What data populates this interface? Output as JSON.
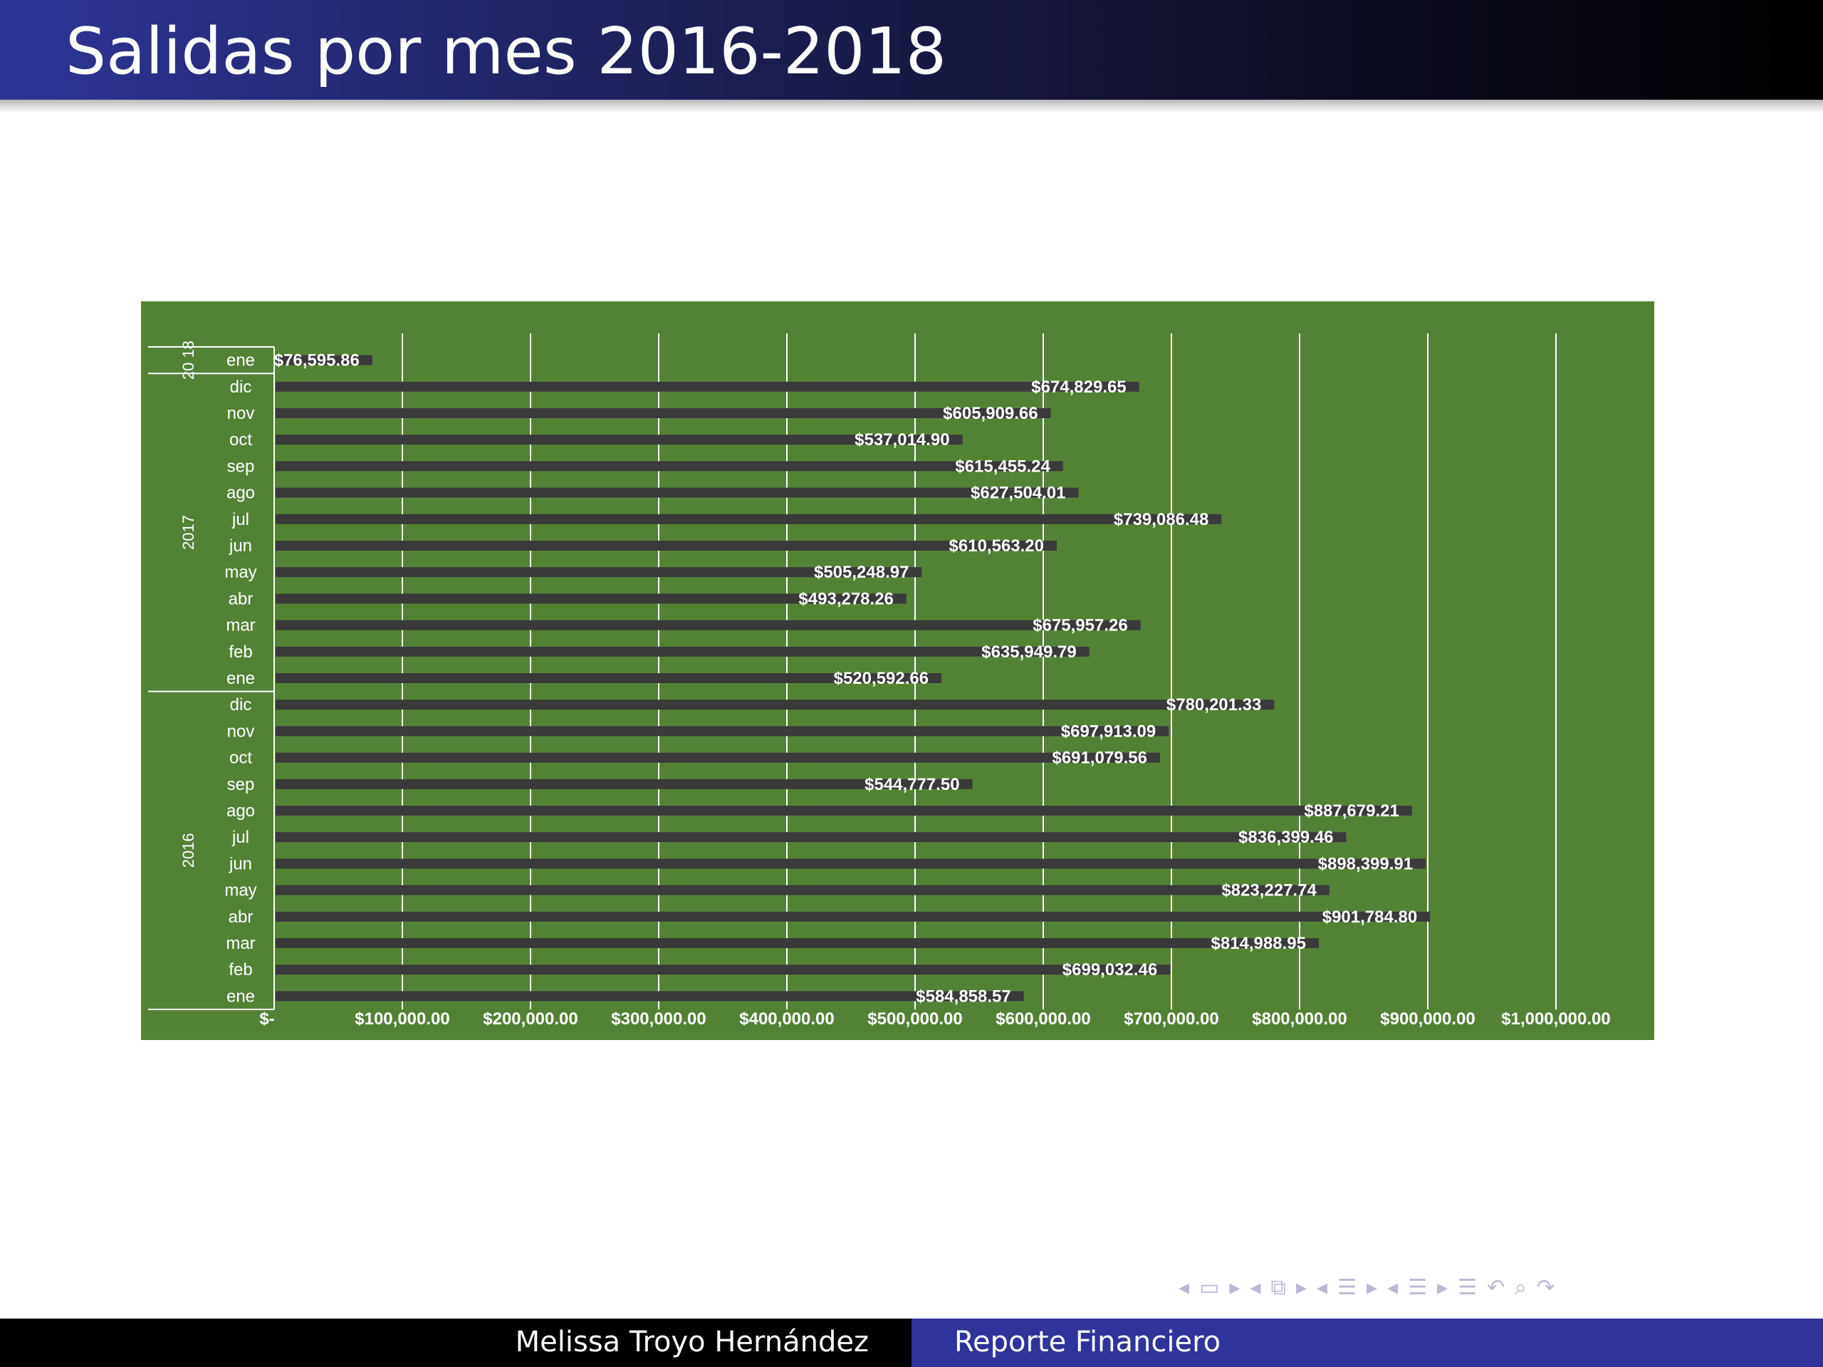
{
  "slide": {
    "title": "Salidas por mes 2016-2018"
  },
  "footer": {
    "author": "Melissa Troyo Hernández",
    "title": "Reporte Financiero"
  },
  "nav_icons": [
    "arrow-left-icon",
    "frame-icon",
    "arrow-right-icon",
    "arrow-left-icon",
    "frames-icon",
    "arrow-right-icon",
    "arrow-left-icon",
    "section-icon",
    "arrow-right-icon",
    "arrow-left-icon",
    "subsection-icon",
    "arrow-right-icon",
    "list-icon",
    "undo-icon",
    "search-icon",
    "redo-icon"
  ],
  "colors": {
    "header_left": "#2e3496",
    "header_right": "#000000",
    "chart_bg": "#548235",
    "bar": "#3a3a3a",
    "grid": "#ffffff",
    "footer_right": "#30339a"
  },
  "chart_data": {
    "type": "bar",
    "orientation": "horizontal",
    "title": "",
    "xlabel": "",
    "ylabel": "",
    "xlim": [
      0,
      1000000
    ],
    "grid": true,
    "x_ticks": [
      "$-",
      "$100,000.00",
      "$200,000.00",
      "$300,000.00",
      "$400,000.00",
      "$500,000.00",
      "$600,000.00",
      "$700,000.00",
      "$800,000.00",
      "$900,000.00",
      "$1,000,000.00"
    ],
    "groups": [
      {
        "year_label": "20 18",
        "months": [
          "ene"
        ]
      },
      {
        "year_label": "2017",
        "months": [
          "dic",
          "nov",
          "oct",
          "sep",
          "ago",
          "jul",
          "jun",
          "may",
          "abr",
          "mar",
          "feb",
          "ene"
        ]
      },
      {
        "year_label": "2016",
        "months": [
          "dic",
          "nov",
          "oct",
          "sep",
          "ago",
          "jul",
          "jun",
          "may",
          "abr",
          "mar",
          "feb",
          "ene"
        ]
      }
    ],
    "values": [
      76595.86,
      674829.65,
      605909.66,
      537014.9,
      615455.24,
      627504.01,
      739086.48,
      610563.2,
      505248.97,
      493278.26,
      675957.26,
      635949.79,
      520592.66,
      780201.33,
      697913.09,
      691079.56,
      544777.5,
      887679.21,
      836399.46,
      898399.91,
      823227.74,
      901784.8,
      814988.95,
      699032.46,
      584858.57
    ],
    "data_labels": [
      "$76,595.86",
      "$674,829.65",
      "$605,909.66",
      "$537,014.90",
      "$615,455.24",
      "$627,504.01",
      "$739,086.48",
      "$610,563.20",
      "$505,248.97",
      "$493,278.26",
      "$675,957.26",
      "$635,949.79",
      "$520,592.66",
      "$780,201.33",
      "$697,913.09",
      "$691,079.56",
      "$544,777.50",
      "$887,679.21",
      "$836,399.46",
      "$898,399.91",
      "$823,227.74",
      "$901,784.80",
      "$814,988.95",
      "$699,032.46",
      "$584,858.57"
    ]
  }
}
